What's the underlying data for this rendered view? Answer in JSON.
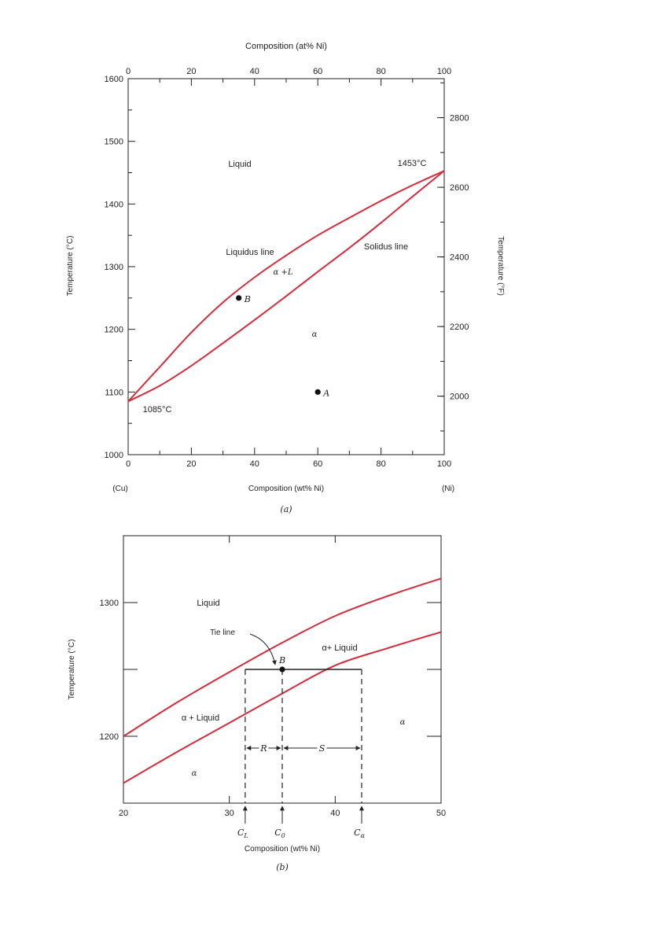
{
  "chart_data": [
    {
      "type": "line",
      "panel_caption": "(a)",
      "title": "Composition (at% Ni)",
      "xlabel": "Composition (wt% Ni)",
      "ylabel": "Temperature (°C)",
      "ylabel_right": "Temperature (°F)",
      "xlim": [
        0,
        100
      ],
      "ylim": [
        1000,
        1600
      ],
      "x_ticks": [
        0,
        20,
        40,
        60,
        80,
        100
      ],
      "x_ticks_top": [
        0,
        20,
        40,
        60,
        80,
        100
      ],
      "y_ticks": [
        1000,
        1100,
        1200,
        1300,
        1400,
        1500,
        1600
      ],
      "y_ticks_right": [
        2000,
        2200,
        2400,
        2600,
        2800
      ],
      "end_labels": {
        "left": "(Cu)",
        "right": "(Ni)"
      },
      "series": [
        {
          "name": "Liquidus line",
          "color": "#d42c3a",
          "x": [
            0,
            10,
            20,
            30,
            40,
            50,
            60,
            70,
            80,
            90,
            100
          ],
          "y": [
            1085,
            1140,
            1195,
            1243,
            1283,
            1318,
            1350,
            1378,
            1405,
            1430,
            1453
          ]
        },
        {
          "name": "Solidus line",
          "color": "#d42c3a",
          "x": [
            0,
            10,
            20,
            30,
            40,
            50,
            60,
            70,
            80,
            90,
            100
          ],
          "y": [
            1085,
            1110,
            1142,
            1178,
            1215,
            1253,
            1292,
            1330,
            1370,
            1412,
            1453
          ]
        }
      ],
      "points": [
        {
          "label": "B",
          "x": 35,
          "y": 1250
        },
        {
          "label": "A",
          "x": 60,
          "y": 1100
        }
      ],
      "annotations": {
        "liquid": "Liquid",
        "melt_ni": "1453°C",
        "liquidus": "Liquidus line",
        "solidus": "Solidus line",
        "two_phase": "α +L",
        "alpha": "α",
        "melt_cu": "1085°C"
      }
    },
    {
      "type": "line",
      "panel_caption": "(b)",
      "xlabel": "Composition (wt% Ni)",
      "ylabel": "Temperature (°C)",
      "xlim": [
        20,
        50
      ],
      "ylim": [
        1150,
        1350
      ],
      "x_ticks": [
        20,
        30,
        40,
        50
      ],
      "y_ticks": [
        1200,
        1300
      ],
      "series": [
        {
          "name": "Liquidus line",
          "color": "#d42c3a",
          "x": [
            20,
            25,
            30,
            35,
            40,
            45,
            50
          ],
          "y": [
            1200,
            1225,
            1248,
            1270,
            1290,
            1305,
            1318
          ]
        },
        {
          "name": "Solidus line",
          "color": "#d42c3a",
          "x": [
            20,
            25,
            30,
            35,
            40,
            45,
            50
          ],
          "y": [
            1165,
            1188,
            1210,
            1232,
            1253,
            1266,
            1278
          ]
        }
      ],
      "tie_line": {
        "y": 1250,
        "x_from": 31.5,
        "x_to": 42.5
      },
      "point": {
        "label": "B",
        "x": 35,
        "y": 1250
      },
      "compositions": {
        "C_L": 31.5,
        "C_0": 35,
        "C_alpha": 42.5
      },
      "labels": {
        "liquid": "Liquid",
        "tie_line": "Tie line",
        "alpha_liquid_upper": "α+ Liquid",
        "alpha_liquid_lower": "α + Liquid",
        "alpha_right": "α",
        "alpha_lower": "α",
        "R": "R",
        "S": "S",
        "CL": "C",
        "CL_sub": "L",
        "C0": "C",
        "C0_sub": "0",
        "Ca": "C",
        "Ca_sub": "α"
      }
    }
  ]
}
